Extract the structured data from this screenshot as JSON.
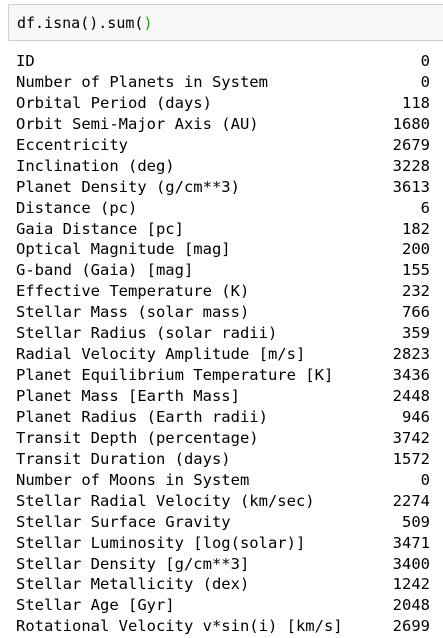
{
  "cell": {
    "code_prefix": "df.isna().sum(",
    "code_suffix": ")"
  },
  "output": {
    "rows": [
      {
        "label": "ID",
        "value": "0"
      },
      {
        "label": "Number of Planets in System",
        "value": "0"
      },
      {
        "label": "Orbital Period (days)",
        "value": "118"
      },
      {
        "label": "Orbit Semi-Major Axis (AU)",
        "value": "1680"
      },
      {
        "label": "Eccentricity",
        "value": "2679"
      },
      {
        "label": "Inclination (deg)",
        "value": "3228"
      },
      {
        "label": "Planet Density (g/cm**3)",
        "value": "3613"
      },
      {
        "label": "Distance (pc)",
        "value": "6"
      },
      {
        "label": "Gaia Distance [pc]",
        "value": "182"
      },
      {
        "label": "Optical Magnitude [mag]",
        "value": "200"
      },
      {
        "label": "G-band (Gaia) [mag]",
        "value": "155"
      },
      {
        "label": "Effective Temperature (K)",
        "value": "232"
      },
      {
        "label": "Stellar Mass (solar mass)",
        "value": "766"
      },
      {
        "label": "Stellar Radius (solar radii)",
        "value": "359"
      },
      {
        "label": "Radial Velocity Amplitude [m/s]",
        "value": "2823"
      },
      {
        "label": "Planet Equilibrium Temperature [K]",
        "value": "3436"
      },
      {
        "label": "Planet Mass [Earth Mass]",
        "value": "2448"
      },
      {
        "label": "Planet Radius (Earth radii)",
        "value": "946"
      },
      {
        "label": "Transit Depth (percentage)",
        "value": "3742"
      },
      {
        "label": "Transit Duration (days)",
        "value": "1572"
      },
      {
        "label": "Number of Moons in System",
        "value": "0"
      },
      {
        "label": "Stellar Radial Velocity (km/sec)",
        "value": "2274"
      },
      {
        "label": "Stellar Surface Gravity",
        "value": "509"
      },
      {
        "label": "Stellar Luminosity [log(solar)]",
        "value": "3471"
      },
      {
        "label": "Stellar Density [g/cm**3]",
        "value": "3400"
      },
      {
        "label": "Stellar Metallicity (dex)",
        "value": "1242"
      },
      {
        "label": "Stellar Age [Gyr]",
        "value": "2048"
      },
      {
        "label": "Rotational Velocity v*sin(i) [km/s]",
        "value": "2699"
      }
    ]
  }
}
